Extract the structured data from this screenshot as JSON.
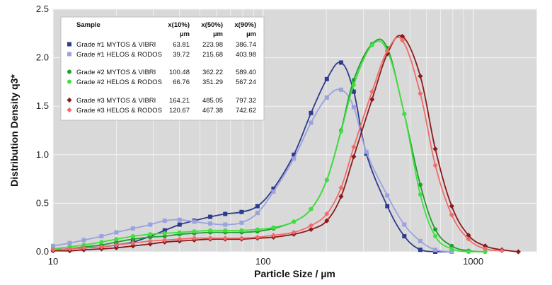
{
  "chart_data": {
    "type": "line",
    "xscale": "log",
    "xlim": [
      10,
      2000
    ],
    "ylim": [
      0,
      2.5
    ],
    "xlabel": "Particle Size / µm",
    "ylabel": "Distribution Density q3*",
    "grid": true,
    "legend_placement": "top-left",
    "x_ticks": [
      "10",
      "100",
      "1000"
    ],
    "y_ticks": [
      "0.0",
      "0.5",
      "1.0",
      "1.5",
      "2.0",
      "2.5"
    ],
    "legend": {
      "col_sample": "Sample",
      "col_x10": "x(10%)",
      "col_x50": "x(50%)",
      "col_x90": "x(90%)",
      "unit": "µm"
    },
    "series": [
      {
        "name": "Grade #1 MYTOS & VIBRI",
        "x10": "63.81",
        "x50": "223.98",
        "x90": "386.74",
        "color": "#2e3a8c",
        "marker": "square",
        "points": [
          [
            10,
            0.02
          ],
          [
            12,
            0.03
          ],
          [
            14,
            0.04
          ],
          [
            17,
            0.05
          ],
          [
            20,
            0.07
          ],
          [
            24,
            0.1
          ],
          [
            29,
            0.16
          ],
          [
            34,
            0.22
          ],
          [
            40,
            0.28
          ],
          [
            47,
            0.32
          ],
          [
            56,
            0.36
          ],
          [
            66,
            0.39
          ],
          [
            79,
            0.41
          ],
          [
            94,
            0.47
          ],
          [
            112,
            0.65
          ],
          [
            140,
            1.0
          ],
          [
            169,
            1.43
          ],
          [
            201,
            1.78
          ],
          [
            235,
            1.95
          ],
          [
            270,
            1.65
          ],
          [
            310,
            1.01
          ],
          [
            390,
            0.47
          ],
          [
            470,
            0.16
          ],
          [
            560,
            0.02
          ],
          [
            660,
            0.0
          ],
          [
            790,
            0.0
          ]
        ]
      },
      {
        "name": "Grade #1 HELOS & RODOS",
        "x10": "39.72",
        "x50": "215.68",
        "x90": "403.98",
        "color": "#9aa2e0",
        "marker": "square",
        "points": [
          [
            10,
            0.06
          ],
          [
            12,
            0.09
          ],
          [
            14,
            0.12
          ],
          [
            17,
            0.16
          ],
          [
            20,
            0.2
          ],
          [
            24,
            0.24
          ],
          [
            29,
            0.28
          ],
          [
            34,
            0.32
          ],
          [
            40,
            0.33
          ],
          [
            47,
            0.31
          ],
          [
            56,
            0.29
          ],
          [
            66,
            0.28
          ],
          [
            79,
            0.3
          ],
          [
            94,
            0.4
          ],
          [
            112,
            0.62
          ],
          [
            140,
            0.96
          ],
          [
            169,
            1.33
          ],
          [
            201,
            1.59
          ],
          [
            235,
            1.67
          ],
          [
            270,
            1.49
          ],
          [
            310,
            1.03
          ],
          [
            390,
            0.58
          ],
          [
            470,
            0.28
          ],
          [
            560,
            0.11
          ],
          [
            660,
            0.02
          ],
          [
            790,
            0.0
          ]
        ]
      },
      {
        "name": "Grade #2 MYTOS & VIBRI",
        "x10": "100.48",
        "x50": "362.22",
        "x90": "589.40",
        "color": "#1f9e2a",
        "marker": "circle",
        "points": [
          [
            10,
            0.02
          ],
          [
            12,
            0.03
          ],
          [
            14,
            0.05
          ],
          [
            17,
            0.07
          ],
          [
            20,
            0.1
          ],
          [
            24,
            0.13
          ],
          [
            29,
            0.15
          ],
          [
            34,
            0.16
          ],
          [
            40,
            0.18
          ],
          [
            47,
            0.19
          ],
          [
            56,
            0.2
          ],
          [
            66,
            0.2
          ],
          [
            79,
            0.2
          ],
          [
            94,
            0.21
          ],
          [
            112,
            0.24
          ],
          [
            140,
            0.31
          ],
          [
            169,
            0.44
          ],
          [
            201,
            0.74
          ],
          [
            235,
            1.25
          ],
          [
            270,
            1.77
          ],
          [
            330,
            2.14
          ],
          [
            390,
            2.1
          ],
          [
            470,
            1.42
          ],
          [
            560,
            0.69
          ],
          [
            660,
            0.23
          ],
          [
            790,
            0.06
          ],
          [
            950,
            0.01
          ],
          [
            1140,
            0.0
          ]
        ]
      },
      {
        "name": "Grade #2 HELOS & RODOS",
        "x10": "66.76",
        "x50": "351.29",
        "x90": "567.24",
        "color": "#3fe03f",
        "marker": "circle",
        "points": [
          [
            10,
            0.03
          ],
          [
            12,
            0.05
          ],
          [
            14,
            0.07
          ],
          [
            17,
            0.1
          ],
          [
            20,
            0.13
          ],
          [
            24,
            0.16
          ],
          [
            29,
            0.18
          ],
          [
            34,
            0.19
          ],
          [
            40,
            0.2
          ],
          [
            47,
            0.21
          ],
          [
            56,
            0.22
          ],
          [
            66,
            0.22
          ],
          [
            79,
            0.22
          ],
          [
            94,
            0.23
          ],
          [
            112,
            0.25
          ],
          [
            140,
            0.31
          ],
          [
            169,
            0.44
          ],
          [
            201,
            0.74
          ],
          [
            235,
            1.24
          ],
          [
            270,
            1.72
          ],
          [
            330,
            2.13
          ],
          [
            390,
            2.07
          ],
          [
            470,
            1.42
          ],
          [
            560,
            0.59
          ],
          [
            660,
            0.16
          ],
          [
            790,
            0.03
          ],
          [
            950,
            0.0
          ],
          [
            1140,
            0.0
          ]
        ]
      },
      {
        "name": "Grade #3 MYTOS & VIBRI",
        "x10": "164.21",
        "x50": "485.05",
        "x90": "797.32",
        "color": "#8b1a1a",
        "marker": "diamond",
        "points": [
          [
            10,
            0.01
          ],
          [
            12,
            0.01
          ],
          [
            14,
            0.02
          ],
          [
            17,
            0.03
          ],
          [
            20,
            0.04
          ],
          [
            24,
            0.06
          ],
          [
            29,
            0.08
          ],
          [
            34,
            0.1
          ],
          [
            40,
            0.11
          ],
          [
            47,
            0.12
          ],
          [
            56,
            0.13
          ],
          [
            66,
            0.13
          ],
          [
            79,
            0.13
          ],
          [
            94,
            0.14
          ],
          [
            112,
            0.15
          ],
          [
            140,
            0.18
          ],
          [
            169,
            0.23
          ],
          [
            201,
            0.32
          ],
          [
            235,
            0.57
          ],
          [
            270,
            0.98
          ],
          [
            330,
            1.57
          ],
          [
            390,
            2.04
          ],
          [
            460,
            2.22
          ],
          [
            560,
            1.81
          ],
          [
            660,
            1.06
          ],
          [
            790,
            0.47
          ],
          [
            950,
            0.17
          ],
          [
            1140,
            0.06
          ],
          [
            1370,
            0.02
          ],
          [
            1640,
            0.0
          ]
        ]
      },
      {
        "name": "Grade #3 HELOS & RODOS",
        "x10": "120.67",
        "x50": "467.38",
        "x90": "742.62",
        "color": "#f06b6b",
        "marker": "diamond",
        "points": [
          [
            10,
            0.02
          ],
          [
            12,
            0.03
          ],
          [
            14,
            0.04
          ],
          [
            17,
            0.05
          ],
          [
            20,
            0.07
          ],
          [
            24,
            0.09
          ],
          [
            29,
            0.11
          ],
          [
            34,
            0.12
          ],
          [
            40,
            0.13
          ],
          [
            47,
            0.14
          ],
          [
            56,
            0.14
          ],
          [
            66,
            0.14
          ],
          [
            79,
            0.14
          ],
          [
            94,
            0.15
          ],
          [
            112,
            0.17
          ],
          [
            140,
            0.2
          ],
          [
            169,
            0.27
          ],
          [
            201,
            0.39
          ],
          [
            235,
            0.66
          ],
          [
            270,
            1.08
          ],
          [
            330,
            1.65
          ],
          [
            390,
            2.07
          ],
          [
            460,
            2.18
          ],
          [
            560,
            1.63
          ],
          [
            660,
            0.89
          ],
          [
            790,
            0.38
          ],
          [
            950,
            0.13
          ],
          [
            1140,
            0.03
          ],
          [
            1370,
            0.01
          ]
        ]
      }
    ]
  }
}
